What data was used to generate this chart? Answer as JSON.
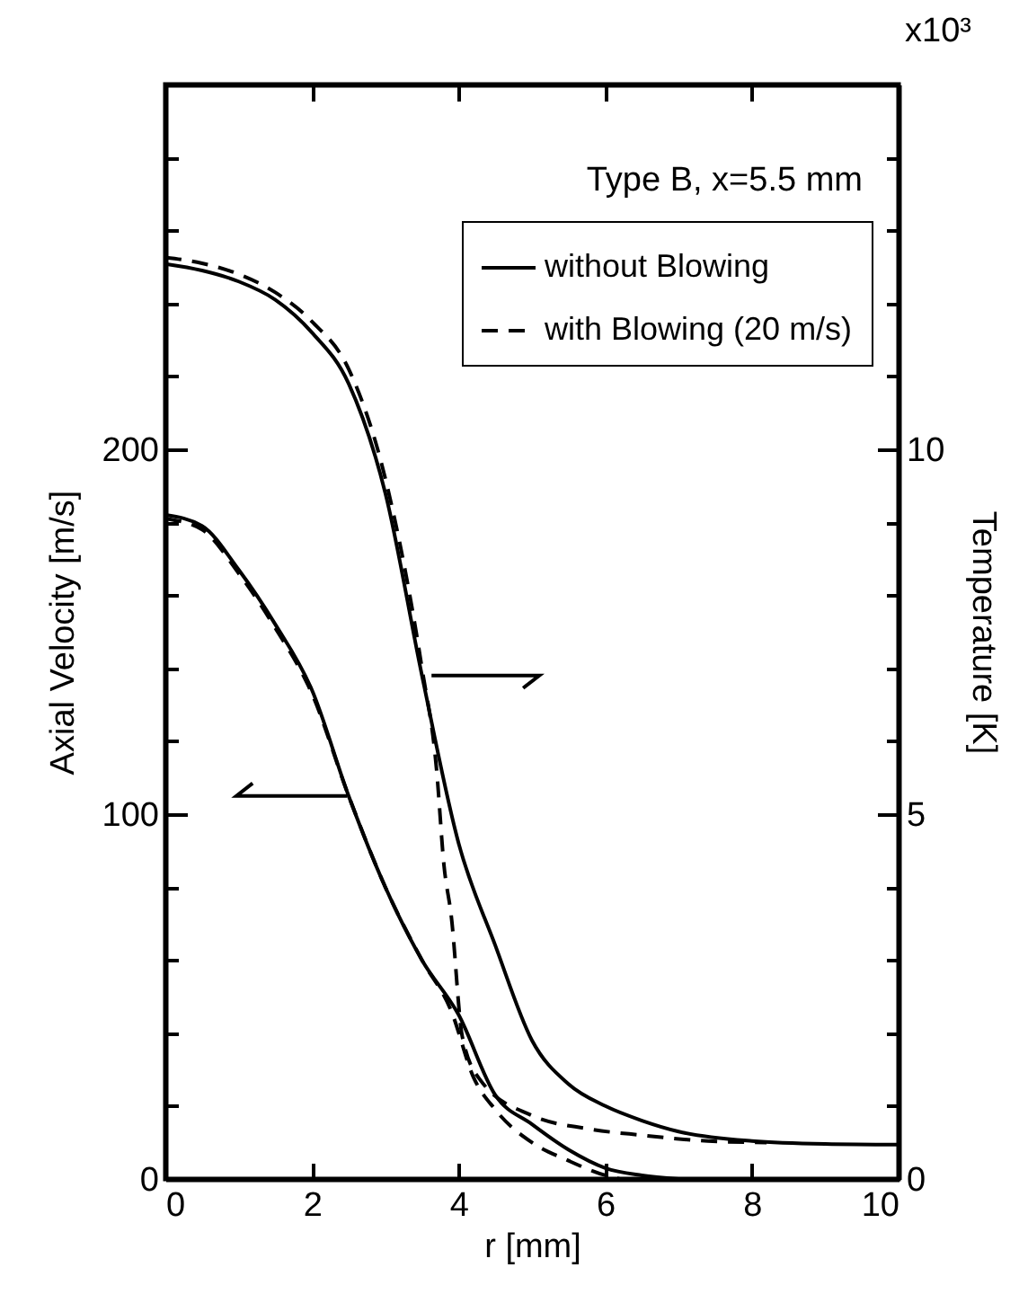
{
  "chart_data": {
    "type": "line",
    "xlabel": "r [mm]",
    "ylabel": "Axial Velocity [m/s]",
    "y2label": "Temperature [K]",
    "annotations": [
      "Type B, x=5.5 mm",
      "x10³"
    ],
    "xlim": [
      0,
      10
    ],
    "xticks": [
      0,
      2,
      4,
      6,
      8,
      10
    ],
    "ylim": [
      0,
      300
    ],
    "yticks": [
      0,
      {
        "value": 20,
        "label": null
      },
      {
        "value": 40,
        "label": null
      },
      {
        "value": 60,
        "label": null
      },
      {
        "value": 80,
        "label": null
      },
      100,
      {
        "value": 120,
        "label": null
      },
      {
        "value": 140,
        "label": null
      },
      {
        "value": 160,
        "label": null
      },
      {
        "value": 180,
        "label": null
      },
      200,
      {
        "value": 220,
        "label": null
      },
      {
        "value": 240,
        "label": null
      },
      {
        "value": 260,
        "label": null
      },
      {
        "value": 280,
        "label": null
      }
    ],
    "y2lim": [
      0,
      15
    ],
    "y2ticks": [
      0,
      {
        "value": 1,
        "label": null
      },
      {
        "value": 2,
        "label": null
      },
      {
        "value": 3,
        "label": null
      },
      {
        "value": 4,
        "label": null
      },
      5,
      {
        "value": 6,
        "label": null
      },
      {
        "value": 7,
        "label": null
      },
      {
        "value": 8,
        "label": null
      },
      {
        "value": 9,
        "label": null
      },
      10,
      {
        "value": 11,
        "label": null
      },
      {
        "value": 12,
        "label": null
      },
      {
        "value": 13,
        "label": null
      },
      {
        "value": 14,
        "label": null
      }
    ],
    "legend": "top right",
    "grid": false,
    "marker": "none",
    "series": [
      {
        "name": "without Blowing",
        "color": "#000000",
        "line_style": "solid",
        "x": [
          0,
          0.5,
          1,
          1.5,
          2,
          2.5,
          3,
          3.5,
          4,
          4.5,
          5,
          5.5,
          6,
          6.5,
          7
        ],
        "values": [
          182,
          179,
          167,
          152,
          134,
          105,
          80,
          60,
          45,
          23,
          15,
          8,
          3,
          1,
          0
        ]
      },
      {
        "name": "with Blowing (20 m/s)",
        "color": "#000000",
        "line_style": "dashed",
        "x": [
          0,
          0.5,
          1,
          1.5,
          2,
          2.5,
          3,
          3.5,
          3.9,
          4.2,
          4.5,
          5,
          5.5,
          6,
          6.2
        ],
        "values": [
          181,
          178,
          166,
          151,
          133,
          105,
          80,
          60,
          46,
          28,
          19,
          10,
          5,
          1,
          0
        ]
      },
      {
        "color": "#000000",
        "line_style": "solid",
        "axis": "y2",
        "x": [
          0,
          0.5,
          1,
          1.5,
          2,
          2.5,
          3,
          3.5,
          4,
          4.5,
          5,
          5.5,
          6,
          6.5,
          7,
          8,
          9,
          10
        ],
        "values": [
          12.54,
          12.45,
          12.3,
          12.05,
          11.6,
          10.9,
          9.4,
          6.9,
          4.6,
          3.2,
          1.9,
          1.3,
          1.0,
          0.8,
          0.65,
          0.52,
          0.48,
          0.47
        ]
      },
      {
        "color": "#000000",
        "line_style": "dashed",
        "axis": "y2",
        "x": [
          0,
          0.5,
          1,
          1.5,
          2,
          2.5,
          3,
          3.5,
          3.7,
          3.8,
          3.9,
          4.05,
          4.3,
          5,
          5.75,
          6.5,
          7.4,
          8.2
        ],
        "values": [
          12.63,
          12.55,
          12.4,
          12.15,
          11.75,
          11.1,
          9.6,
          7.0,
          5.6,
          4.3,
          3.6,
          1.95,
          1.35,
          0.87,
          0.69,
          0.6,
          0.52,
          0.5
        ]
      }
    ]
  }
}
